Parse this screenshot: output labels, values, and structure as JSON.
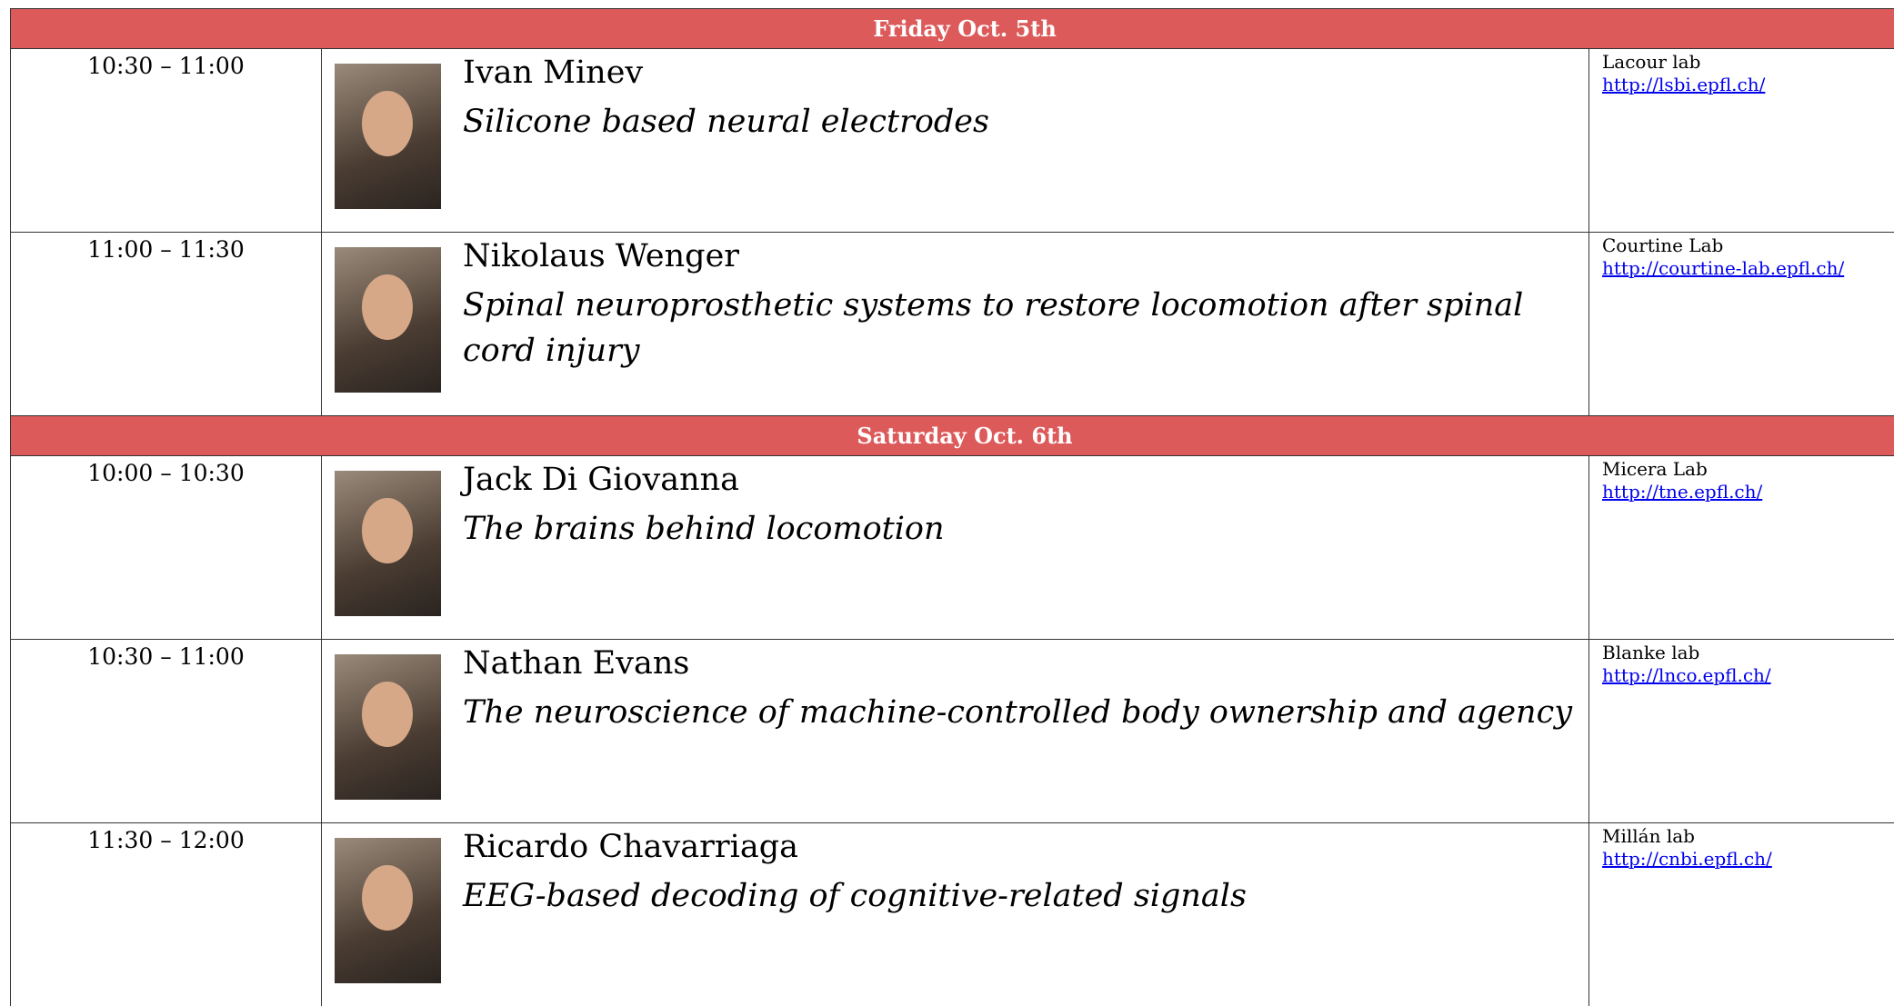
{
  "days": [
    {
      "title": "Friday Oct. 5th",
      "sessions": [
        {
          "time": "10:30 – 11:00",
          "speaker": "Ivan Minev",
          "talk": "Silicone based neural electrodes",
          "lab": "Lacour lab",
          "url": "http://lsbi.epfl.ch/"
        },
        {
          "time": "11:00 – 11:30",
          "speaker": "Nikolaus Wenger",
          "talk": "Spinal neuroprosthetic systems to restore locomotion after spinal cord injury",
          "lab": "Courtine Lab",
          "url": "http://courtine-lab.epfl.ch/"
        }
      ]
    },
    {
      "title": "Saturday Oct. 6th",
      "sessions": [
        {
          "time": "10:00 – 10:30",
          "speaker": "Jack Di Giovanna",
          "talk": "The brains behind locomotion",
          "lab": "Micera Lab",
          "url": "http://tne.epfl.ch/"
        },
        {
          "time": "10:30 – 11:00",
          "speaker": "Nathan Evans",
          "talk": "The neuroscience of machine-controlled body ownership and agency",
          "lab": "Blanke lab",
          "url": "http://lnco.epfl.ch/"
        },
        {
          "time": "11:30 – 12:00",
          "speaker": "Ricardo Chavarriaga",
          "talk": "EEG-based decoding of cognitive-related signals",
          "lab": "Millán lab",
          "url": "http://cnbi.epfl.ch/"
        }
      ]
    }
  ]
}
